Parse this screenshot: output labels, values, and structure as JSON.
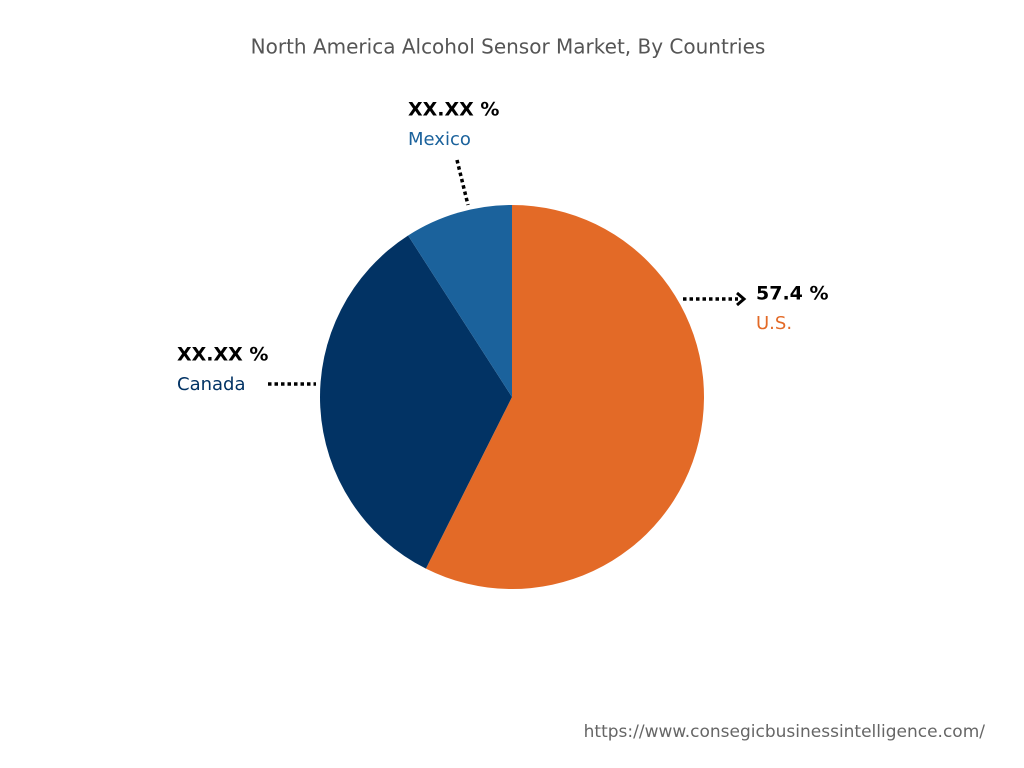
{
  "chart_data": {
    "type": "pie",
    "title": "North America Alcohol Sensor Market, By Countries",
    "categories": [
      "U.S.",
      "Canada",
      "Mexico"
    ],
    "values": [
      57.4,
      33.5,
      9.1
    ],
    "value_labels": [
      "57.4 %",
      "XX.XX %",
      "XX.XX %"
    ],
    "colors": [
      "#e36a27",
      "#023364",
      "#1b629c"
    ]
  },
  "source": "https://www.consegicbusinessintelligence.com/"
}
